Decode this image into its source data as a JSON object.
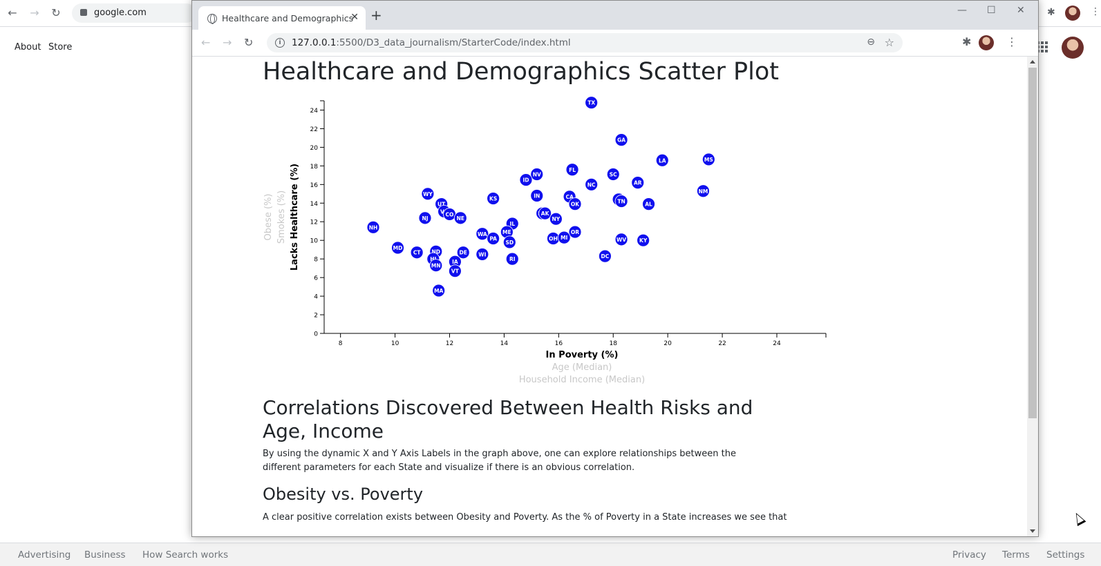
{
  "background": {
    "omnibox_url": "google.com",
    "links": [
      "About",
      "Store"
    ],
    "footer_left": [
      "Advertising",
      "Business",
      "How Search works"
    ],
    "footer_right": [
      "Privacy",
      "Terms",
      "Settings"
    ]
  },
  "window": {
    "tab_title": "Healthcare and Demographics",
    "url_host": "127.0.0.1",
    "url_path": ":5500/D3_data_journalism/StarterCode/index.html"
  },
  "page": {
    "title": "Healthcare and Demographics Scatter Plot",
    "section_title": "Correlations Discovered Between Health Risks and Age, Income",
    "intro": "By using the dynamic X and Y Axis Labels in the graph above, one can explore relationships between the different parameters for each State and visualize if there is an obvious correlation.",
    "subsection_title": "Obesity vs. Poverty",
    "subsection_text": "A clear positive correlation exists between Obesity and Poverty. As the % of Poverty in a State increases we see that"
  },
  "colors": {
    "point": "#1010ee",
    "label_active": "#000000",
    "label_inactive": "#c8c8c8"
  },
  "chart_data": {
    "type": "scatter",
    "x_axis": {
      "labels": [
        {
          "text": "In Poverty (%)",
          "active": true
        },
        {
          "text": "Age (Median)",
          "active": false
        },
        {
          "text": "Household Income (Median)",
          "active": false
        }
      ],
      "range": [
        7.4,
        25.8
      ],
      "ticks": [
        8,
        10,
        12,
        14,
        16,
        18,
        20,
        22,
        24
      ]
    },
    "y_axis": {
      "labels": [
        {
          "text": "Lacks Healthcare (%)",
          "active": true
        },
        {
          "text": "Smokes (%)",
          "active": false
        },
        {
          "text": "Obese (%)",
          "active": false
        }
      ],
      "range": [
        0,
        25
      ],
      "ticks": [
        0,
        2,
        4,
        6,
        8,
        10,
        12,
        14,
        16,
        18,
        20,
        22,
        24
      ]
    },
    "points": [
      {
        "abbr": "TX",
        "x": 17.2,
        "y": 24.8
      },
      {
        "abbr": "GA",
        "x": 18.3,
        "y": 20.8
      },
      {
        "abbr": "LA",
        "x": 19.8,
        "y": 18.6
      },
      {
        "abbr": "MS",
        "x": 21.5,
        "y": 18.7
      },
      {
        "abbr": "FL",
        "x": 16.5,
        "y": 17.6
      },
      {
        "abbr": "SC",
        "x": 18.0,
        "y": 17.1
      },
      {
        "abbr": "NV",
        "x": 15.2,
        "y": 17.1
      },
      {
        "abbr": "ID",
        "x": 14.8,
        "y": 16.5
      },
      {
        "abbr": "NC",
        "x": 17.2,
        "y": 16.0
      },
      {
        "abbr": "AR",
        "x": 18.9,
        "y": 16.2
      },
      {
        "abbr": "NM",
        "x": 21.3,
        "y": 15.3
      },
      {
        "abbr": "WY",
        "x": 11.2,
        "y": 15.0
      },
      {
        "abbr": "IN",
        "x": 15.2,
        "y": 14.8
      },
      {
        "abbr": "CA",
        "x": 16.4,
        "y": 14.7
      },
      {
        "abbr": "KS",
        "x": 13.6,
        "y": 14.5
      },
      {
        "abbr": "AZ",
        "x": 18.2,
        "y": 14.4
      },
      {
        "abbr": "TN",
        "x": 18.3,
        "y": 14.2
      },
      {
        "abbr": "OK",
        "x": 16.6,
        "y": 13.9
      },
      {
        "abbr": "AL",
        "x": 19.3,
        "y": 13.9
      },
      {
        "abbr": "UT",
        "x": 11.7,
        "y": 13.9
      },
      {
        "abbr": "VA",
        "x": 11.8,
        "y": 13.1
      },
      {
        "abbr": "CO",
        "x": 12.0,
        "y": 12.8
      },
      {
        "abbr": "MT",
        "x": 15.4,
        "y": 12.9
      },
      {
        "abbr": "AK",
        "x": 15.5,
        "y": 12.9
      },
      {
        "abbr": "NJ",
        "x": 11.1,
        "y": 12.4
      },
      {
        "abbr": "NE",
        "x": 12.4,
        "y": 12.4
      },
      {
        "abbr": "NY",
        "x": 15.9,
        "y": 12.3
      },
      {
        "abbr": "IL",
        "x": 14.3,
        "y": 11.8
      },
      {
        "abbr": "NH",
        "x": 9.2,
        "y": 11.4
      },
      {
        "abbr": "ME",
        "x": 14.1,
        "y": 10.9
      },
      {
        "abbr": "OR",
        "x": 16.6,
        "y": 10.9
      },
      {
        "abbr": "WA",
        "x": 13.2,
        "y": 10.7
      },
      {
        "abbr": "PA",
        "x": 13.6,
        "y": 10.2
      },
      {
        "abbr": "OH",
        "x": 15.8,
        "y": 10.2
      },
      {
        "abbr": "MI",
        "x": 16.2,
        "y": 10.3
      },
      {
        "abbr": "WV",
        "x": 18.3,
        "y": 10.1
      },
      {
        "abbr": "KY",
        "x": 19.1,
        "y": 10.0
      },
      {
        "abbr": "SD",
        "x": 14.2,
        "y": 9.8
      },
      {
        "abbr": "MD",
        "x": 10.1,
        "y": 9.2
      },
      {
        "abbr": "CT",
        "x": 10.8,
        "y": 8.7
      },
      {
        "abbr": "ND",
        "x": 11.5,
        "y": 8.8
      },
      {
        "abbr": "DE",
        "x": 12.5,
        "y": 8.7
      },
      {
        "abbr": "WI",
        "x": 13.2,
        "y": 8.5
      },
      {
        "abbr": "HI",
        "x": 11.4,
        "y": 8.0
      },
      {
        "abbr": "RI",
        "x": 14.3,
        "y": 8.0
      },
      {
        "abbr": "DC",
        "x": 17.7,
        "y": 8.3
      },
      {
        "abbr": "IA",
        "x": 12.2,
        "y": 7.7
      },
      {
        "abbr": "MN",
        "x": 11.5,
        "y": 7.3
      },
      {
        "abbr": "VT",
        "x": 12.2,
        "y": 6.7
      },
      {
        "abbr": "MA",
        "x": 11.6,
        "y": 4.6
      }
    ]
  }
}
